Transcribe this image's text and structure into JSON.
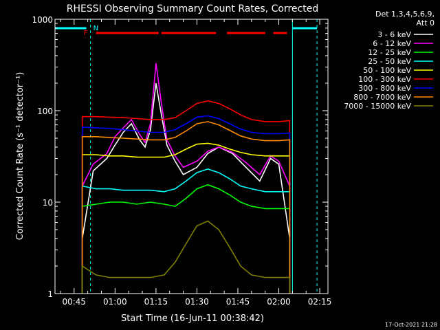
{
  "chart_data": {
    "type": "line",
    "title": "RHESSI Observing Summary Count Rates, Corrected",
    "xlabel": "Start Time (16-Jun-11 00:38:42)",
    "ylabel": "Corrected Count Rate (s⁻¹ detector⁻¹)",
    "y_scale": "log",
    "ylim": [
      1,
      1000
    ],
    "xlim": [
      "00:38",
      "02:18"
    ],
    "x_ticks": [
      "00:45",
      "01:00",
      "01:15",
      "01:30",
      "01:45",
      "02:00",
      "02:15"
    ],
    "y_ticks": [
      "1",
      "10",
      "100",
      "1000"
    ],
    "legend_header": [
      "Det 1,3,4,5,6,9,",
      "Att 0"
    ],
    "legend_position": "outside right",
    "footer": "17-Oct-2021 21:28",
    "markers": {
      "night_boundaries": [
        "00:51",
        "02:05",
        "02:14"
      ],
      "flag_labels": [
        "F",
        "N"
      ]
    },
    "series": [
      {
        "name": "3 - 6 keV",
        "color": "#ffffff",
        "x": [
          "00:48",
          "00:52",
          "00:57",
          "01:00",
          "01:03",
          "01:06",
          "01:09",
          "01:11",
          "01:13",
          "01:15",
          "01:17",
          "01:19",
          "01:22",
          "01:25",
          "01:30",
          "01:34",
          "01:38",
          "01:43",
          "01:48",
          "01:53",
          "01:57",
          "02:00",
          "02:04"
        ],
        "y": [
          4,
          22,
          30,
          42,
          58,
          72,
          48,
          40,
          62,
          200,
          90,
          42,
          28,
          20,
          24,
          34,
          40,
          34,
          24,
          17,
          30,
          26,
          4
        ]
      },
      {
        "name": "6 - 12 keV",
        "color": "#ff00ff",
        "x": [
          "00:48",
          "00:52",
          "00:57",
          "01:00",
          "01:03",
          "01:06",
          "01:09",
          "01:11",
          "01:13",
          "01:15",
          "01:17",
          "01:19",
          "01:22",
          "01:25",
          "01:30",
          "01:34",
          "01:38",
          "01:43",
          "01:48",
          "01:53",
          "01:57",
          "02:00",
          "02:04"
        ],
        "y": [
          15,
          26,
          34,
          52,
          65,
          80,
          55,
          45,
          72,
          330,
          120,
          48,
          32,
          24,
          28,
          36,
          40,
          35,
          27,
          20,
          32,
          28,
          15
        ]
      },
      {
        "name": "12 - 25 keV",
        "color": "#00ff00",
        "x": [
          "00:48",
          "00:53",
          "00:58",
          "01:03",
          "01:08",
          "01:13",
          "01:18",
          "01:22",
          "01:26",
          "01:30",
          "01:34",
          "01:38",
          "01:42",
          "01:46",
          "01:50",
          "01:55",
          "02:00",
          "02:04"
        ],
        "y": [
          9,
          9.5,
          10,
          10,
          9.5,
          10,
          9.5,
          9,
          11,
          14,
          15.5,
          14,
          12,
          10,
          9,
          8.5,
          8.5,
          8.5
        ]
      },
      {
        "name": "25 - 50 keV",
        "color": "#00ffff",
        "x": [
          "00:48",
          "00:53",
          "00:58",
          "01:03",
          "01:08",
          "01:13",
          "01:18",
          "01:22",
          "01:26",
          "01:30",
          "01:34",
          "01:38",
          "01:42",
          "01:46",
          "01:50",
          "01:55",
          "02:00",
          "02:04"
        ],
        "y": [
          15,
          14,
          14,
          13.5,
          13.5,
          13.5,
          13,
          14,
          17,
          21,
          23,
          21,
          18,
          15,
          14,
          13,
          13,
          13
        ]
      },
      {
        "name": "50 - 100 keV",
        "color": "#ffff00",
        "x": [
          "00:48",
          "00:53",
          "00:58",
          "01:03",
          "01:08",
          "01:13",
          "01:18",
          "01:22",
          "01:26",
          "01:30",
          "01:34",
          "01:38",
          "01:42",
          "01:46",
          "01:50",
          "01:55",
          "02:00",
          "02:04"
        ],
        "y": [
          33,
          33,
          32,
          32,
          31,
          31,
          31,
          33,
          38,
          43,
          44,
          42,
          38,
          35,
          33,
          32,
          32,
          32
        ]
      },
      {
        "name": "100 - 300 keV",
        "color": "#ff0000",
        "x": [
          "00:48",
          "00:53",
          "00:58",
          "01:03",
          "01:08",
          "01:13",
          "01:18",
          "01:22",
          "01:26",
          "01:30",
          "01:34",
          "01:38",
          "01:42",
          "01:46",
          "01:50",
          "01:55",
          "02:00",
          "02:04"
        ],
        "y": [
          86,
          86,
          85,
          84,
          82,
          80,
          80,
          84,
          100,
          120,
          128,
          120,
          105,
          90,
          80,
          76,
          76,
          78
        ]
      },
      {
        "name": "300 - 800 keV",
        "color": "#0000ff",
        "x": [
          "00:48",
          "00:53",
          "00:58",
          "01:03",
          "01:08",
          "01:13",
          "01:18",
          "01:22",
          "01:26",
          "01:30",
          "01:34",
          "01:38",
          "01:42",
          "01:46",
          "01:50",
          "01:55",
          "02:00",
          "02:04"
        ],
        "y": [
          66,
          65,
          64,
          62,
          60,
          58,
          58,
          62,
          72,
          85,
          88,
          82,
          72,
          63,
          58,
          56,
          56,
          57
        ]
      },
      {
        "name": "800 - 7000 keV",
        "color": "#ff8c00",
        "x": [
          "00:48",
          "00:53",
          "00:58",
          "01:03",
          "01:08",
          "01:13",
          "01:18",
          "01:22",
          "01:26",
          "01:30",
          "01:34",
          "01:38",
          "01:42",
          "01:46",
          "01:50",
          "01:55",
          "02:00",
          "02:04"
        ],
        "y": [
          52,
          52,
          51,
          50,
          49,
          48,
          48,
          51,
          60,
          72,
          76,
          70,
          61,
          53,
          49,
          47,
          47,
          48
        ]
      },
      {
        "name": "7000 - 15000 keV",
        "color": "#808000",
        "x": [
          "00:48",
          "00:53",
          "00:58",
          "01:03",
          "01:08",
          "01:13",
          "01:18",
          "01:22",
          "01:26",
          "01:30",
          "01:34",
          "01:38",
          "01:42",
          "01:46",
          "01:50",
          "01:55",
          "02:00",
          "02:04"
        ],
        "y": [
          2,
          1.6,
          1.5,
          1.5,
          1.5,
          1.5,
          1.6,
          2.2,
          3.5,
          5.5,
          6.2,
          5,
          3.2,
          2,
          1.6,
          1.5,
          1.5,
          1.5
        ]
      }
    ]
  }
}
